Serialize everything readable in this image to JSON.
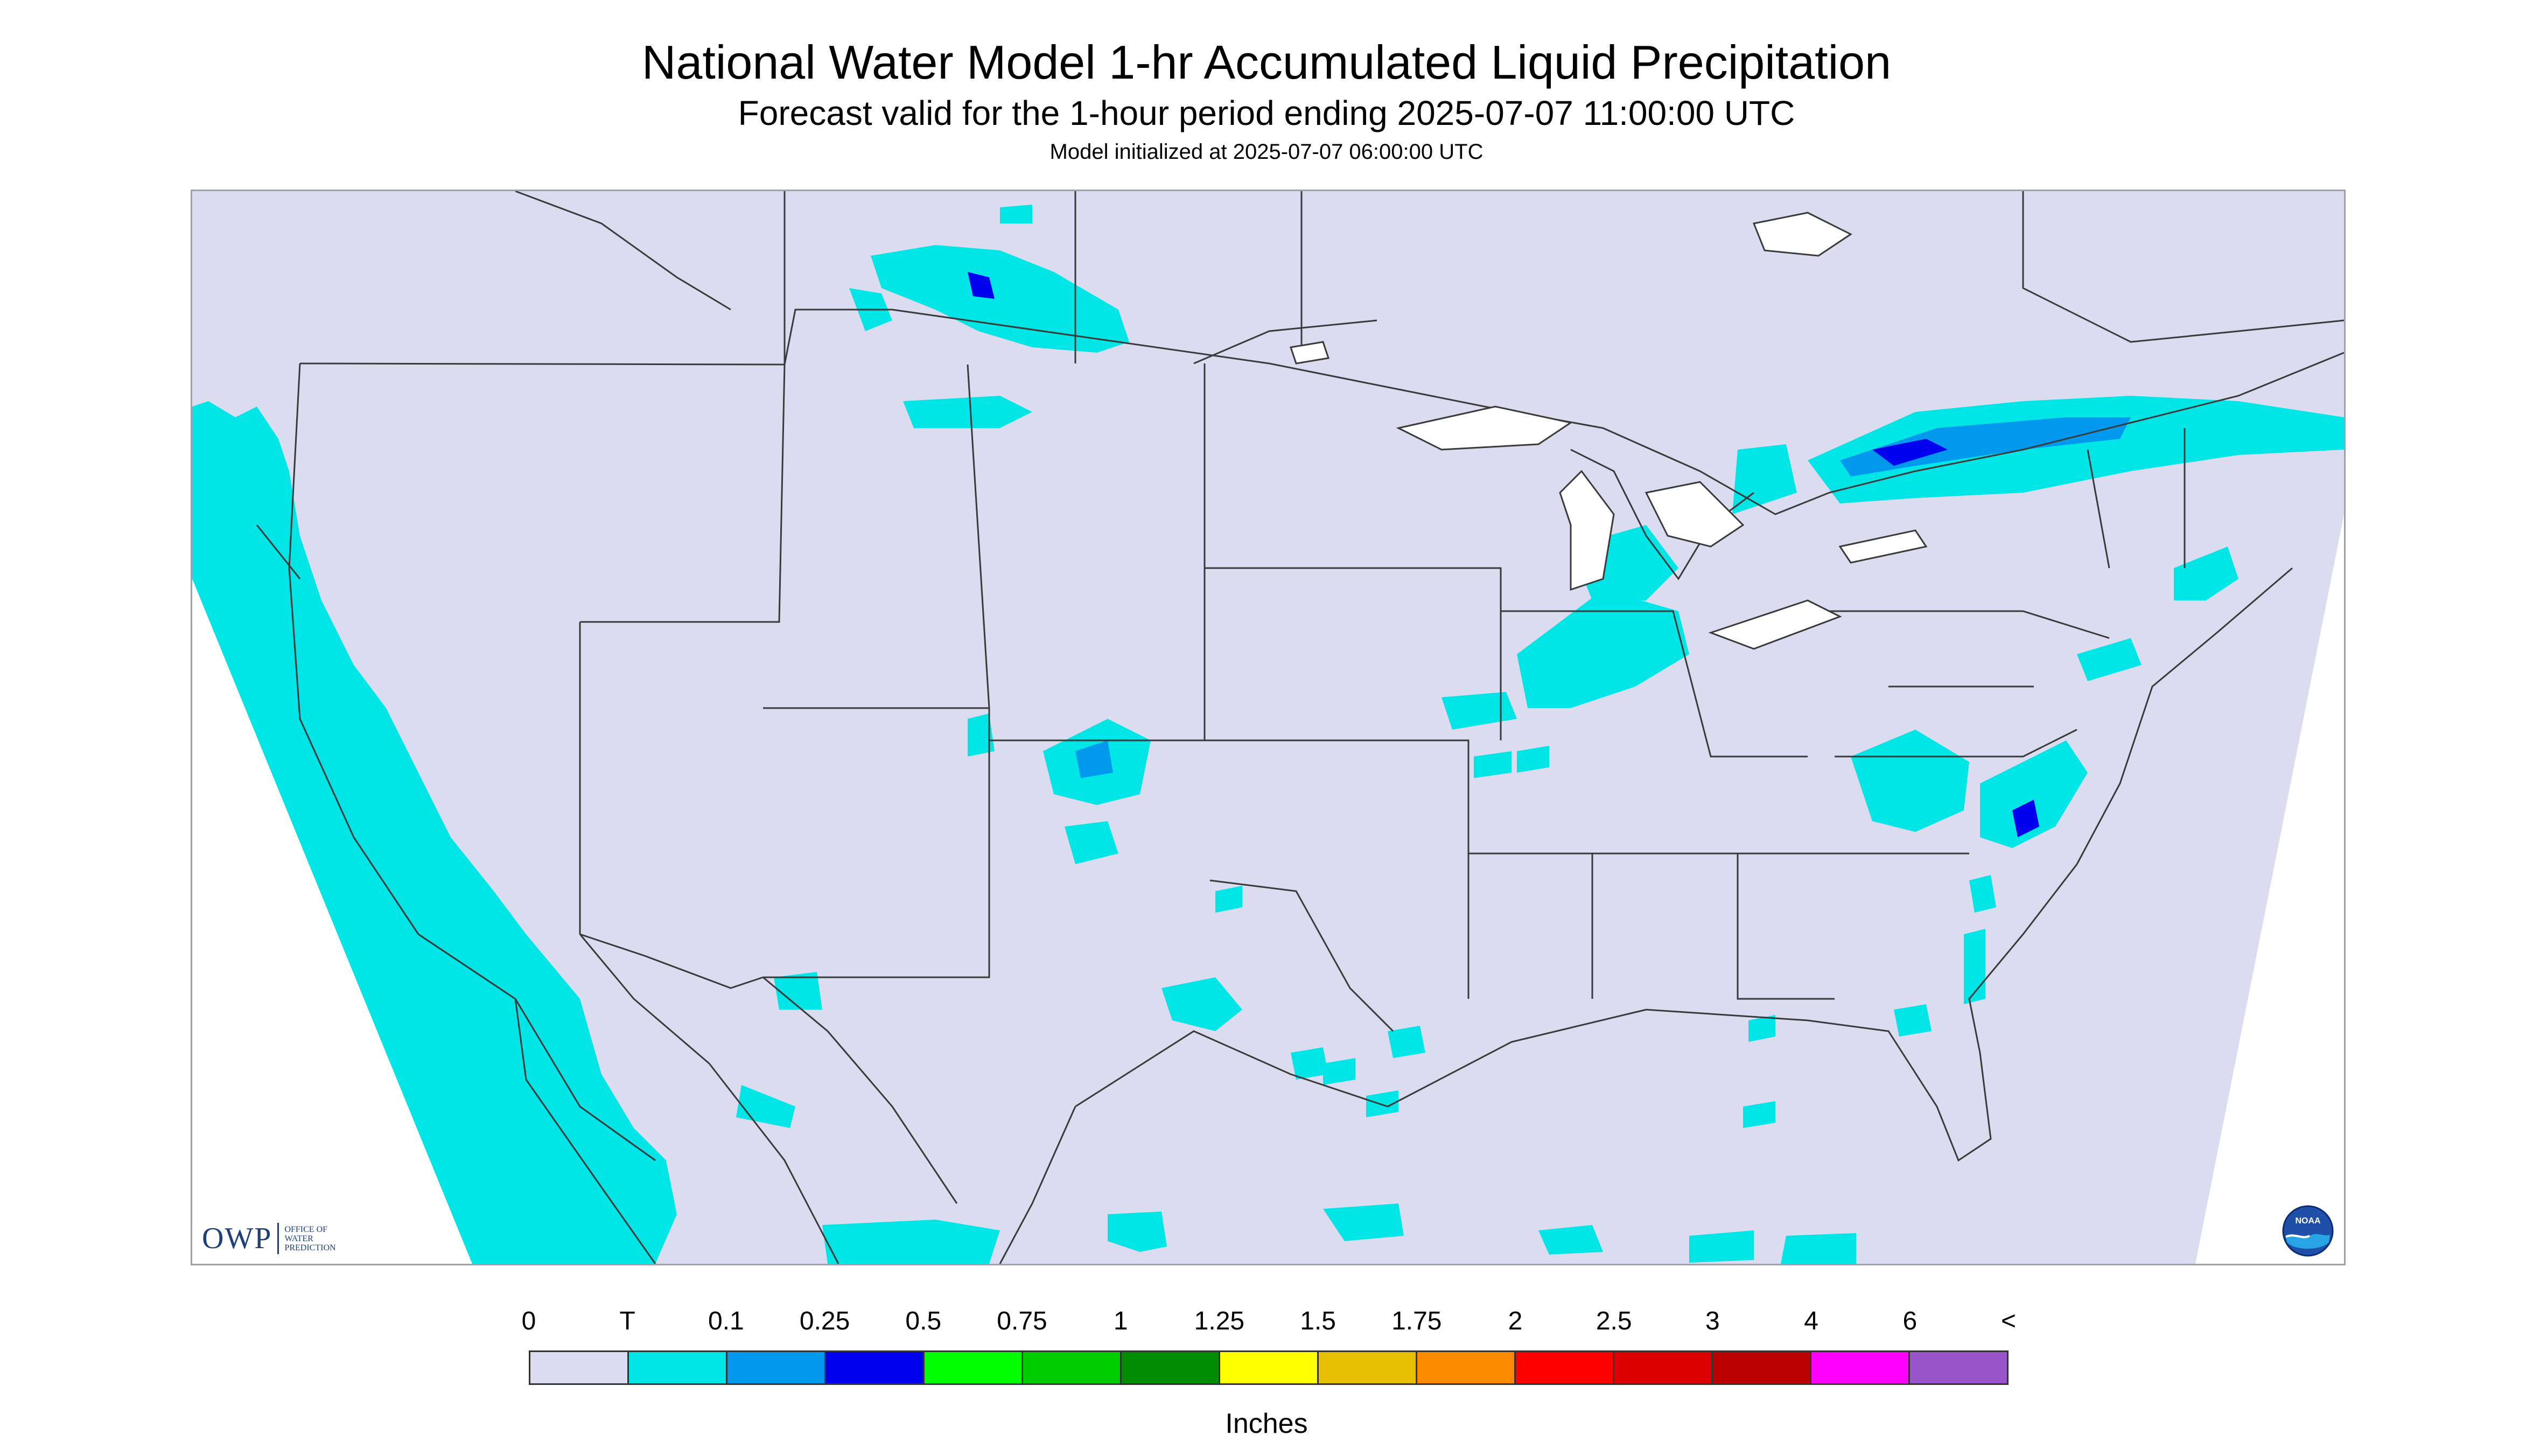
{
  "header": {
    "title": "National Water Model 1-hr Accumulated Liquid Precipitation",
    "subtitle": "Forecast valid for the 1-hour period ending 2025-07-07 11:00:00 UTC",
    "init": "Model initialized at 2025-07-07 06:00:00 UTC"
  },
  "logos": {
    "owp_mark": "OWP",
    "owp_text": [
      "Office of",
      "Water",
      "Prediction"
    ],
    "noaa": "NOAA"
  },
  "legend": {
    "ticks": [
      "0",
      "T",
      "0.1",
      "0.25",
      "0.5",
      "0.75",
      "1",
      "1.25",
      "1.5",
      "1.75",
      "2",
      "2.5",
      "3",
      "4",
      "6",
      "<"
    ],
    "colors": [
      "#dcdcf0",
      "#00e5e5",
      "#0099ee",
      "#0000ee",
      "#00ff00",
      "#00cc00",
      "#008c00",
      "#ffff00",
      "#e5bf00",
      "#ff8c00",
      "#ff0000",
      "#dd0000",
      "#bb0000",
      "#ff00ff",
      "#9955cc"
    ],
    "units": "Inches"
  },
  "map_colors": {
    "land": "#dcdcf0",
    "outside": "#ffffff",
    "trace": "#00e5e5",
    "light": "#0099ee",
    "moderate": "#0000ee",
    "border": "#3a3a3a"
  }
}
